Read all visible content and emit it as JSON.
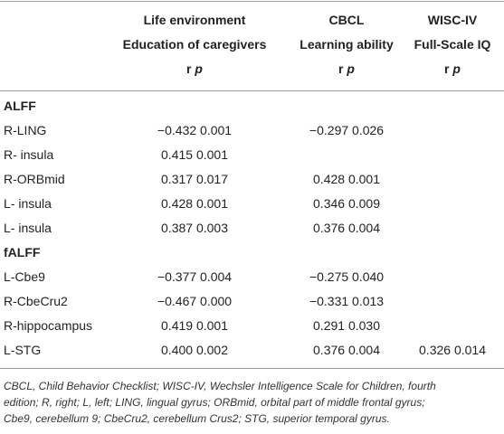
{
  "header": {
    "col1": {
      "line1": "Life environment",
      "line2": "Education of caregivers",
      "stat_r": "r",
      "stat_p": "p"
    },
    "col2": {
      "line1": "CBCL",
      "line2": "Learning ability",
      "stat_r": "r",
      "stat_p": "p"
    },
    "col3": {
      "line1": "WISC-IV",
      "line2": "Full-Scale IQ",
      "stat_r": "r",
      "stat_p": "p"
    }
  },
  "sections": [
    {
      "title": "ALFF",
      "rows": [
        {
          "label": "R-LING",
          "c1": "−0.432 0.001",
          "c2": "−0.297 0.026",
          "c3": ""
        },
        {
          "label": "R- insula",
          "c1": "0.415 0.001",
          "c2": "",
          "c3": ""
        },
        {
          "label": "R-ORBmid",
          "c1": "0.317 0.017",
          "c2": "0.428 0.001",
          "c3": ""
        },
        {
          "label": "L- insula",
          "c1": "0.428 0.001",
          "c2": "0.346 0.009",
          "c3": ""
        },
        {
          "label": "L- insula",
          "c1": "0.387 0.003",
          "c2": "0.376 0.004",
          "c3": ""
        }
      ]
    },
    {
      "title": "fALFF",
      "rows": [
        {
          "label": "L-Cbe9",
          "c1": "−0.377 0.004",
          "c2": "−0.275 0.040",
          "c3": ""
        },
        {
          "label": "R-CbeCru2",
          "c1": "−0.467 0.000",
          "c2": "−0.331 0.013",
          "c3": ""
        },
        {
          "label": "R-hippocampus",
          "c1": "0.419 0.001",
          "c2": "0.291 0.030",
          "c3": ""
        },
        {
          "label": "L-STG",
          "c1": "0.400 0.002",
          "c2": "0.376 0.004",
          "c3": "0.326 0.014"
        }
      ]
    }
  ],
  "footnote": {
    "line1": "CBCL, Child Behavior Checklist; WISC-IV, Wechsler Intelligence Scale for Children, fourth",
    "line2": "edition; R, right; L, left; LING, lingual gyrus; ORBmid, orbital part of middle frontal gyrus;",
    "line3": "Cbe9, cerebellum 9; CbeCru2, cerebellum Crus2; STG, superior temporal gyrus."
  }
}
